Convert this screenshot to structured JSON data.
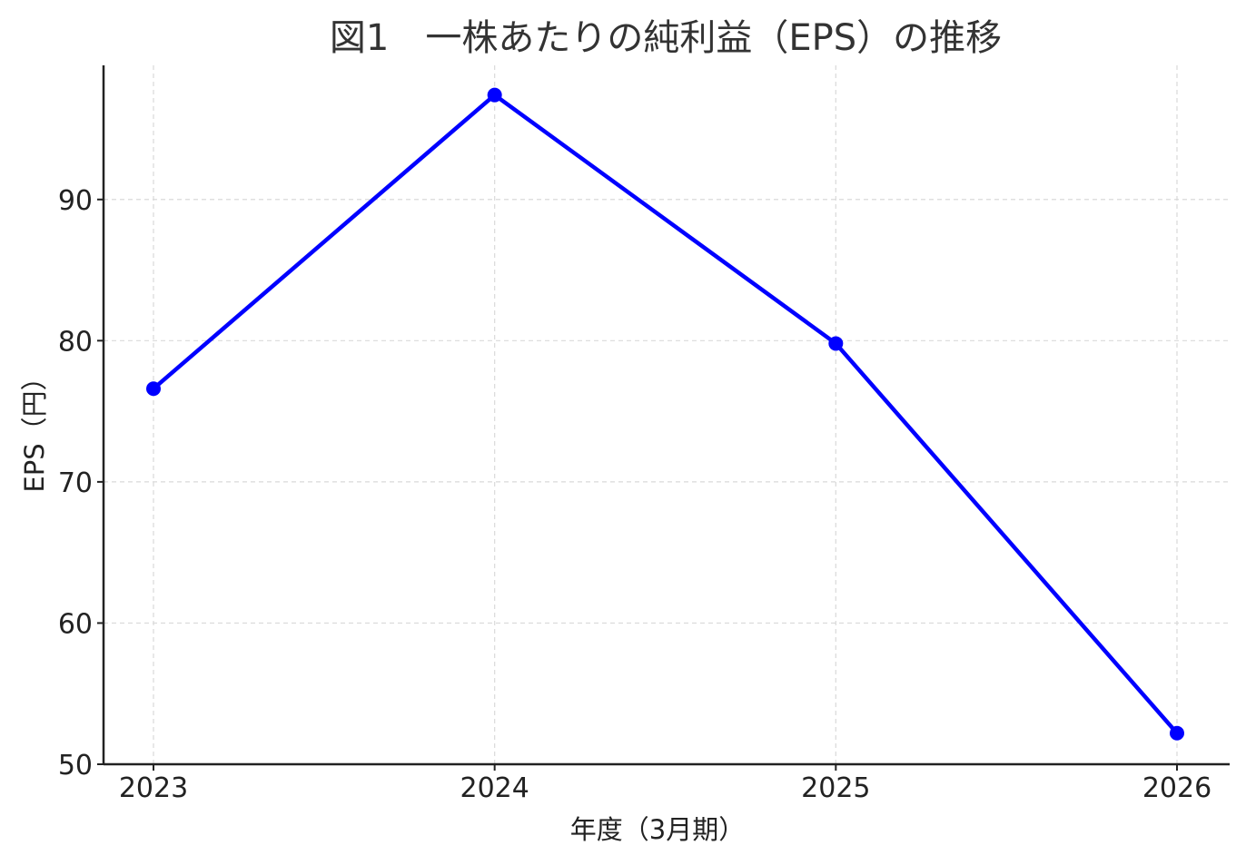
{
  "chart_data": {
    "type": "line",
    "title": "図1　一株あたりの純利益（EPS）の推移",
    "xlabel": "年度（3月期）",
    "ylabel": "EPS（円）",
    "categories": [
      "2023",
      "2024",
      "2025",
      "2026"
    ],
    "series": [
      {
        "values": [
          76.6,
          97.4,
          79.8,
          52.2
        ],
        "color": "#0000ff",
        "marker": "circle"
      }
    ],
    "yticks": [
      50,
      60,
      70,
      80,
      90
    ],
    "ylim": [
      50,
      99.5
    ],
    "grid": true,
    "legend": "none"
  }
}
